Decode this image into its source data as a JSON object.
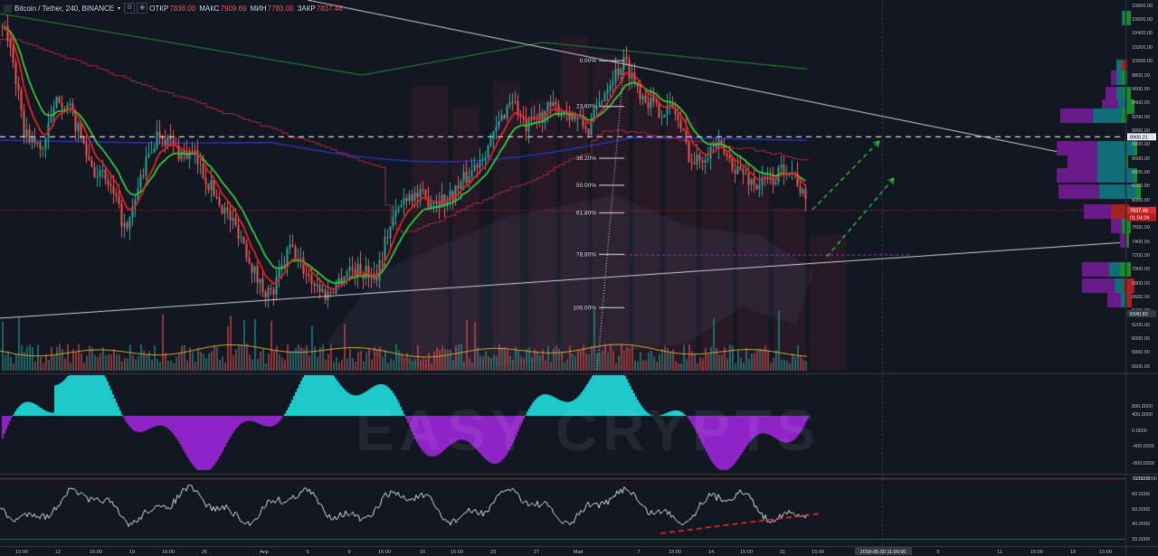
{
  "header": {
    "symbol": "Bitcoin / Tether, 240, BINANCE",
    "dropdown_icon": "chevron-down-icon",
    "open_label": "ОТКР",
    "open_value": "7838.00",
    "high_label": "МАКС",
    "high_value": "7909.69",
    "low_label": "МИН",
    "low_value": "7783.00",
    "close_label": "ЗАКР",
    "close_value": "7837.48"
  },
  "watermark": "EASY CRYPTS",
  "colors": {
    "background": "#131722",
    "ema_fast": "#e32222",
    "ema_mid": "#2ec73a",
    "ma_slow_green": "#1f7a2e",
    "ma_blue": "#2233aa",
    "ma_red_step": "#a8283a",
    "bull_candle": "#26a69a",
    "bear_candle": "#ef5350",
    "osc_pos": "#1ec9c9",
    "osc_neg": "#8e24c8",
    "price_tag": "#d32f2f",
    "profile_purple": "#6a1b8a",
    "profile_teal": "#0f6e78",
    "profile_green": "#1b8a2e",
    "profile_red": "#a82222"
  },
  "price_axis": {
    "labels": [
      "10800.00",
      "10600.00",
      "10400.00",
      "10200.00",
      "10000.00",
      "9800.00",
      "9600.00",
      "9400.00",
      "9200.00",
      "9000.00",
      "8800.00",
      "8600.00",
      "8400.00",
      "8200.00",
      "8000.00",
      "7600.00",
      "7400.00",
      "7200.00",
      "7000.00",
      "6800.00",
      "6600.00",
      "6400.00",
      "6200.00",
      "6000.00",
      "5800.00",
      "5600.00"
    ],
    "tag_dashed": "8900.21",
    "tag_close": "7837.48",
    "tag_countdown": "01:04:26",
    "tag_low": "6340.82"
  },
  "osc_axis": {
    "labels": [
      "800.0000",
      "400.0000",
      "0.0000",
      "-400.0000",
      "-800.0000",
      "-1200.0000"
    ]
  },
  "rsi_axis": {
    "labels": [
      "70.0000",
      "60.0000",
      "50.0000",
      "40.0000",
      "30.0000"
    ]
  },
  "fib": {
    "levels": [
      {
        "label": "0.00%",
        "price": 10000
      },
      {
        "label": "23.60%",
        "price": 9340
      },
      {
        "label": "38.20%",
        "price": 8590
      },
      {
        "label": "50.00%",
        "price": 8200
      },
      {
        "label": "61.80%",
        "price": 7800
      },
      {
        "label": "78.60%",
        "price": 7200
      },
      {
        "label": "100.00%",
        "price": 6430
      }
    ]
  },
  "time_axis": {
    "labels": [
      "15:00",
      "12",
      "15:00",
      "19",
      "15:00",
      "26",
      "Апр",
      "5",
      "9",
      "15:00",
      "16",
      "15:00",
      "23",
      "27",
      "Май",
      "7",
      "15:00",
      "14",
      "15:00",
      "21",
      "15:00",
      "2018-05-30 11:00:00",
      "5",
      "11",
      "15:00",
      "18",
      "15:00"
    ],
    "cursor_label": "2018-05-30 11:00:00"
  }
}
